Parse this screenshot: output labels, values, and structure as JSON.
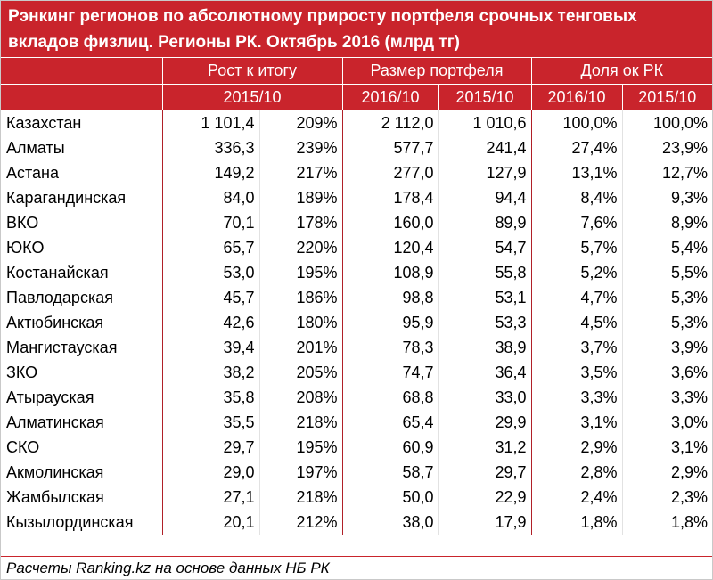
{
  "title_line1": "Рэнкинг регионов по абсолютному приросту портфеля срочных тенговых",
  "title_line2": "вкладов физлиц. Регионы РК. Октябрь 2016 (млрд тг)",
  "headers": {
    "group_growth": "Рост к итогу",
    "group_size": "Размер портфеля",
    "group_share": "Доля ок РК",
    "growth_period": "2015/10",
    "size_2016": "2016/10",
    "size_2015": "2015/10",
    "share_2016": "2016/10",
    "share_2015": "2015/10"
  },
  "footer": "Расчеты Ranking.kz на основе данных НБ РК",
  "accent_color": "#c9242c",
  "chart_data": {
    "type": "table",
    "title": "Рэнкинг регионов по абсолютному приросту портфеля срочных тенговых вкладов физлиц. Регионы РК. Октябрь 2016 (млрд тг)",
    "columns": [
      "",
      "Рост к итогу 2015/10",
      "Рост к итогу 2015/10 %",
      "Размер портфеля 2016/10",
      "Размер портфеля 2015/10",
      "Доля ок РК 2016/10",
      "Доля ок РК 2015/10"
    ],
    "rows": [
      [
        "Казахстан",
        "1 101,4",
        "209%",
        "2 112,0",
        "1 010,6",
        "100,0%",
        "100,0%"
      ],
      [
        "Алматы",
        "336,3",
        "239%",
        "577,7",
        "241,4",
        "27,4%",
        "23,9%"
      ],
      [
        "Астана",
        "149,2",
        "217%",
        "277,0",
        "127,9",
        "13,1%",
        "12,7%"
      ],
      [
        "Карагандинская",
        "84,0",
        "189%",
        "178,4",
        "94,4",
        "8,4%",
        "9,3%"
      ],
      [
        "ВКО",
        "70,1",
        "178%",
        "160,0",
        "89,9",
        "7,6%",
        "8,9%"
      ],
      [
        "ЮКО",
        "65,7",
        "220%",
        "120,4",
        "54,7",
        "5,7%",
        "5,4%"
      ],
      [
        "Костанайская",
        "53,0",
        "195%",
        "108,9",
        "55,8",
        "5,2%",
        "5,5%"
      ],
      [
        "Павлодарская",
        "45,7",
        "186%",
        "98,8",
        "53,1",
        "4,7%",
        "5,3%"
      ],
      [
        "Актюбинская",
        "42,6",
        "180%",
        "95,9",
        "53,3",
        "4,5%",
        "5,3%"
      ],
      [
        "Мангистауская",
        "39,4",
        "201%",
        "78,3",
        "38,9",
        "3,7%",
        "3,9%"
      ],
      [
        "ЗКО",
        "38,2",
        "205%",
        "74,7",
        "36,4",
        "3,5%",
        "3,6%"
      ],
      [
        "Атырауская",
        "35,8",
        "208%",
        "68,8",
        "33,0",
        "3,3%",
        "3,3%"
      ],
      [
        "Алматинская",
        "35,5",
        "218%",
        "65,4",
        "29,9",
        "3,1%",
        "3,0%"
      ],
      [
        "СКО",
        "29,7",
        "195%",
        "60,9",
        "31,2",
        "2,9%",
        "3,1%"
      ],
      [
        "Акмолинская",
        "29,0",
        "197%",
        "58,7",
        "29,7",
        "2,8%",
        "2,9%"
      ],
      [
        "Жамбылская",
        "27,1",
        "218%",
        "50,0",
        "22,9",
        "2,4%",
        "2,3%"
      ],
      [
        "Кызылординская",
        "20,1",
        "212%",
        "38,0",
        "17,9",
        "1,8%",
        "1,8%"
      ]
    ]
  }
}
